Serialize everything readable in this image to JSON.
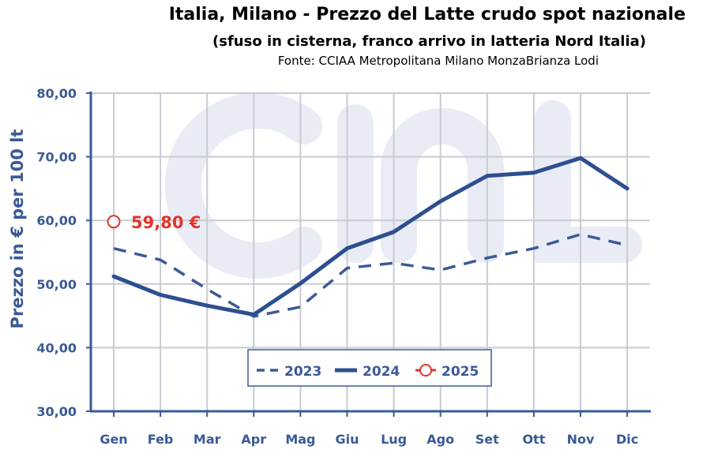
{
  "colors": {
    "series_2023": "#3a5a96",
    "series_2024": "#2d4f91",
    "series_2025": "#e0352b",
    "axis": "#3a5a96",
    "grid": "#c8cbd2",
    "watermark": "#e9ecf4"
  },
  "chart_data": {
    "type": "line",
    "title": "Italia, Milano - Prezzo del Latte crudo spot nazionale",
    "subtitle": "(sfuso in cisterna, franco arrivo in latteria Nord Italia)",
    "source": "Fonte: CCIAA Metropolitana Milano MonzaBrianza Lodi",
    "ylabel": "Prezzo in € per 100 lt",
    "xlabel": "",
    "categories": [
      "Gen",
      "Feb",
      "Mar",
      "Apr",
      "Mag",
      "Giu",
      "Lug",
      "Ago",
      "Set",
      "Ott",
      "Nov",
      "Dic"
    ],
    "ylim": [
      30,
      80
    ],
    "yticks": [
      "30,00",
      "40,00",
      "50,00",
      "60,00",
      "70,00",
      "80,00"
    ],
    "grid": true,
    "legend_position": "bottom-center",
    "series": [
      {
        "name": "2023",
        "style": "dashed",
        "values": [
          55.6,
          53.8,
          49.2,
          44.9,
          46.4,
          52.5,
          53.3,
          52.2,
          54.1,
          55.6,
          57.8,
          56.1
        ]
      },
      {
        "name": "2024",
        "style": "solid",
        "values": [
          51.2,
          48.3,
          46.6,
          45.2,
          50.1,
          55.6,
          58.2,
          63.0,
          67.0,
          67.5,
          69.8,
          65.0
        ]
      },
      {
        "name": "2025",
        "style": "marker",
        "values": [
          59.8,
          null,
          null,
          null,
          null,
          null,
          null,
          null,
          null,
          null,
          null,
          null
        ]
      }
    ],
    "annotation": {
      "text": "59,80 €",
      "category": "Gen",
      "value": 59.8
    }
  }
}
